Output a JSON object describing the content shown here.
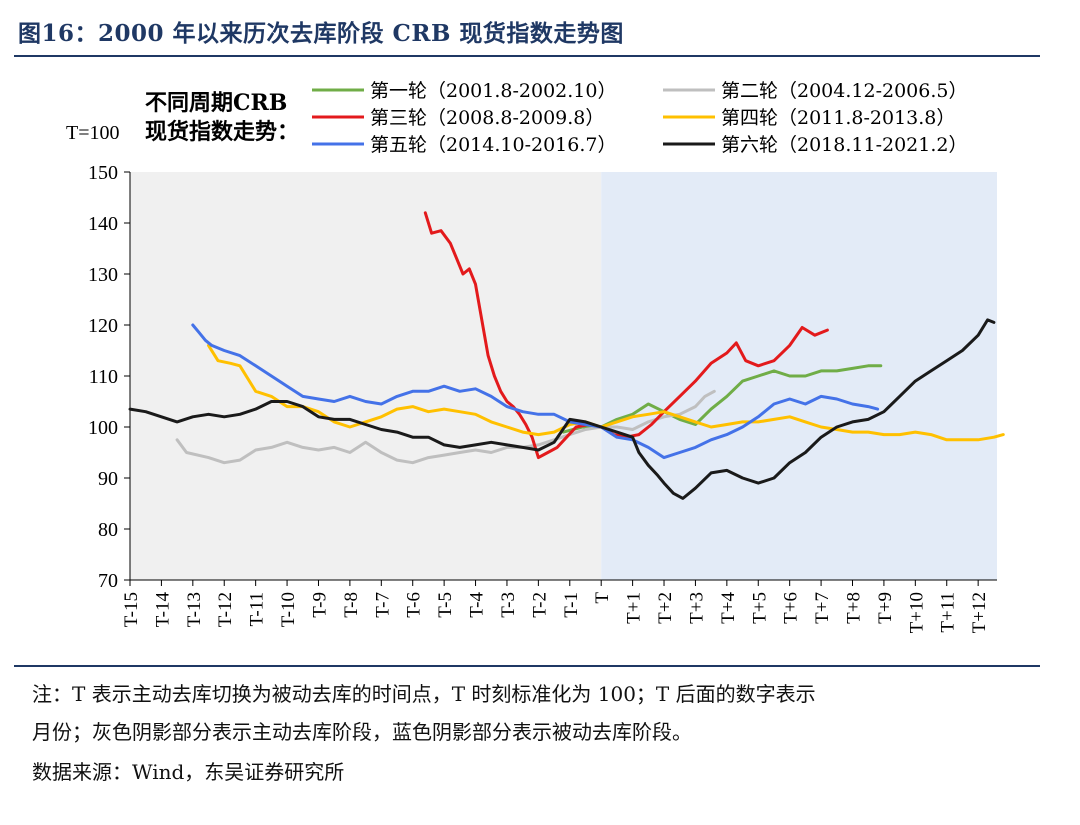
{
  "figure": {
    "title": "图16：2000 年以来历次去库阶段 CRB 现货指数走势图"
  },
  "notes": {
    "line1": "注：T 表示主动去库切换为被动去库的时间点，T 时刻标准化为 100；T 后面的数字表示",
    "line2": "月份；灰色阴影部分表示主动去库阶段，蓝色阴影部分表示被动去库阶段。",
    "source": "数据来源：Wind，东吴证券研究所"
  },
  "colors": {
    "active_shade": "#f0f0f0",
    "passive_shade": "#e3ebf7"
  },
  "chart_data": {
    "type": "line",
    "title": "",
    "ylabel": "T=100",
    "legend_title": [
      "不同周期CRB",
      "现货指数走势："
    ],
    "ylim": [
      70,
      150
    ],
    "yticks": [
      70,
      80,
      90,
      100,
      110,
      120,
      130,
      140,
      150
    ],
    "xlim": [
      -15,
      12.6
    ],
    "xticks": [
      {
        "v": -15,
        "label": "T-15"
      },
      {
        "v": -14,
        "label": "T-14"
      },
      {
        "v": -13,
        "label": "T-13"
      },
      {
        "v": -12,
        "label": "T-12"
      },
      {
        "v": -11,
        "label": "T-11"
      },
      {
        "v": -10,
        "label": "T-10"
      },
      {
        "v": -9,
        "label": "T-9"
      },
      {
        "v": -8,
        "label": "T-8"
      },
      {
        "v": -7,
        "label": "T-7"
      },
      {
        "v": -6,
        "label": "T-6"
      },
      {
        "v": -5,
        "label": "T-5"
      },
      {
        "v": -4,
        "label": "T-4"
      },
      {
        "v": -3,
        "label": "T-3"
      },
      {
        "v": -2,
        "label": "T-2"
      },
      {
        "v": -1,
        "label": "T-1"
      },
      {
        "v": 0,
        "label": "T"
      },
      {
        "v": 1,
        "label": "T+1"
      },
      {
        "v": 2,
        "label": "T+2"
      },
      {
        "v": 3,
        "label": "T+3"
      },
      {
        "v": 4,
        "label": "T+4"
      },
      {
        "v": 5,
        "label": "T+5"
      },
      {
        "v": 6,
        "label": "T+6"
      },
      {
        "v": 7,
        "label": "T+7"
      },
      {
        "v": 8,
        "label": "T+8"
      },
      {
        "v": 9,
        "label": "T+9"
      },
      {
        "v": 10,
        "label": "T+10"
      },
      {
        "v": 11,
        "label": "T+11"
      },
      {
        "v": 12,
        "label": "T+12"
      }
    ],
    "shading": [
      {
        "from": -15,
        "to": 0,
        "name": "主动去库阶段"
      },
      {
        "from": 0,
        "to": 12.6,
        "name": "被动去库阶段"
      }
    ],
    "series": [
      {
        "name": "第一轮（2001.8-2002.10）",
        "color": "#70ad47",
        "points": [
          [
            -1.2,
            99
          ],
          [
            -0.6,
            100
          ],
          [
            0,
            100
          ],
          [
            0.5,
            101.5
          ],
          [
            1,
            102.5
          ],
          [
            1.5,
            104.5
          ],
          [
            2,
            103
          ],
          [
            2.5,
            101.5
          ],
          [
            3,
            100.5
          ],
          [
            3.5,
            103.5
          ],
          [
            4,
            106
          ],
          [
            4.5,
            109
          ],
          [
            5,
            110
          ],
          [
            5.5,
            111
          ],
          [
            6,
            110
          ],
          [
            6.5,
            110
          ],
          [
            7,
            111
          ],
          [
            7.5,
            111
          ],
          [
            8,
            111.5
          ],
          [
            8.5,
            112
          ],
          [
            8.9,
            112
          ]
        ]
      },
      {
        "name": "第二轮（2004.12-2006.5）",
        "color": "#bfbfbf",
        "points": [
          [
            -13.5,
            97.5
          ],
          [
            -13.2,
            95
          ],
          [
            -12.5,
            94
          ],
          [
            -12,
            93
          ],
          [
            -11.5,
            93.5
          ],
          [
            -11,
            95.5
          ],
          [
            -10.5,
            96
          ],
          [
            -10,
            97
          ],
          [
            -9.5,
            96
          ],
          [
            -9,
            95.5
          ],
          [
            -8.5,
            96
          ],
          [
            -8,
            95
          ],
          [
            -7.5,
            97
          ],
          [
            -7,
            95
          ],
          [
            -6.5,
            93.5
          ],
          [
            -6,
            93
          ],
          [
            -5.5,
            94
          ],
          [
            -5,
            94.5
          ],
          [
            -4.5,
            95
          ],
          [
            -4,
            95.5
          ],
          [
            -3.5,
            95
          ],
          [
            -3,
            96
          ],
          [
            -2.5,
            96
          ],
          [
            -2,
            96.5
          ],
          [
            -1.5,
            97.5
          ],
          [
            -1,
            98.5
          ],
          [
            -0.5,
            99.5
          ],
          [
            0,
            100
          ],
          [
            0.5,
            100
          ],
          [
            1,
            99.5
          ],
          [
            1.5,
            101
          ],
          [
            2,
            102
          ],
          [
            2.5,
            102.5
          ],
          [
            3,
            104
          ],
          [
            3.3,
            106
          ],
          [
            3.6,
            107
          ]
        ]
      },
      {
        "name": "第三轮（2008.8-2009.8）",
        "color": "#e31a1c",
        "points": [
          [
            -5.6,
            142
          ],
          [
            -5.4,
            138
          ],
          [
            -5.1,
            138.5
          ],
          [
            -4.8,
            136
          ],
          [
            -4.6,
            133
          ],
          [
            -4.4,
            130
          ],
          [
            -4.2,
            131
          ],
          [
            -4,
            128
          ],
          [
            -3.8,
            121
          ],
          [
            -3.6,
            114
          ],
          [
            -3.4,
            110
          ],
          [
            -3.2,
            107
          ],
          [
            -3,
            105
          ],
          [
            -2.8,
            104
          ],
          [
            -2.6,
            102.5
          ],
          [
            -2.4,
            100.5
          ],
          [
            -2.2,
            98
          ],
          [
            -2,
            94
          ],
          [
            -1.7,
            95
          ],
          [
            -1.4,
            96
          ],
          [
            -1.1,
            98
          ],
          [
            -0.8,
            100
          ],
          [
            -0.4,
            100.5
          ],
          [
            0,
            100
          ],
          [
            0.4,
            98.5
          ],
          [
            0.8,
            98
          ],
          [
            1.2,
            98.5
          ],
          [
            1.6,
            100.5
          ],
          [
            2,
            103
          ],
          [
            2.5,
            106
          ],
          [
            3,
            109
          ],
          [
            3.5,
            112.5
          ],
          [
            4,
            114.5
          ],
          [
            4.3,
            116.5
          ],
          [
            4.6,
            113
          ],
          [
            5,
            112
          ],
          [
            5.5,
            113
          ],
          [
            6,
            116
          ],
          [
            6.4,
            119.5
          ],
          [
            6.8,
            118
          ],
          [
            7.2,
            119
          ]
        ]
      },
      {
        "name": "第四轮（2011.8-2013.8）",
        "color": "#ffc000",
        "points": [
          [
            -12.5,
            116
          ],
          [
            -12.2,
            113
          ],
          [
            -11.8,
            112.5
          ],
          [
            -11.5,
            112
          ],
          [
            -11,
            107
          ],
          [
            -10.5,
            106
          ],
          [
            -10,
            104
          ],
          [
            -9.5,
            104
          ],
          [
            -9,
            103
          ],
          [
            -8.5,
            101
          ],
          [
            -8,
            100
          ],
          [
            -7.5,
            101
          ],
          [
            -7,
            102
          ],
          [
            -6.5,
            103.5
          ],
          [
            -6,
            104
          ],
          [
            -5.5,
            103
          ],
          [
            -5,
            103.5
          ],
          [
            -4.5,
            103
          ],
          [
            -4,
            102.5
          ],
          [
            -3.5,
            101
          ],
          [
            -3,
            100
          ],
          [
            -2.5,
            99
          ],
          [
            -2,
            98.5
          ],
          [
            -1.5,
            99
          ],
          [
            -1,
            100.5
          ],
          [
            -0.5,
            101
          ],
          [
            0,
            100
          ],
          [
            0.5,
            101
          ],
          [
            1,
            102
          ],
          [
            1.5,
            102.5
          ],
          [
            2,
            103
          ],
          [
            2.5,
            102
          ],
          [
            3,
            101
          ],
          [
            3.5,
            100
          ],
          [
            4,
            100.5
          ],
          [
            4.5,
            101
          ],
          [
            5,
            101
          ],
          [
            5.5,
            101.5
          ],
          [
            6,
            102
          ],
          [
            6.5,
            101
          ],
          [
            7,
            100
          ],
          [
            7.5,
            99.5
          ],
          [
            8,
            99
          ],
          [
            8.5,
            99
          ],
          [
            9,
            98.5
          ],
          [
            9.5,
            98.5
          ],
          [
            10,
            99
          ],
          [
            10.5,
            98.5
          ],
          [
            11,
            97.5
          ],
          [
            11.5,
            97.5
          ],
          [
            12,
            97.5
          ],
          [
            12.5,
            98
          ],
          [
            12.8,
            98.5
          ]
        ]
      },
      {
        "name": "第五轮（2014.10-2016.7）",
        "color": "#4472e8",
        "points": [
          [
            -13,
            120
          ],
          [
            -12.8,
            118.5
          ],
          [
            -12.6,
            117
          ],
          [
            -12.4,
            116
          ],
          [
            -12,
            115
          ],
          [
            -11.5,
            114
          ],
          [
            -11,
            112
          ],
          [
            -10.5,
            110
          ],
          [
            -10,
            108
          ],
          [
            -9.5,
            106
          ],
          [
            -9,
            105.5
          ],
          [
            -8.5,
            105
          ],
          [
            -8,
            106
          ],
          [
            -7.5,
            105
          ],
          [
            -7,
            104.5
          ],
          [
            -6.5,
            106
          ],
          [
            -6,
            107
          ],
          [
            -5.5,
            107
          ],
          [
            -5,
            108
          ],
          [
            -4.5,
            107
          ],
          [
            -4,
            107.5
          ],
          [
            -3.5,
            106
          ],
          [
            -3,
            104
          ],
          [
            -2.5,
            103
          ],
          [
            -2,
            102.5
          ],
          [
            -1.5,
            102.5
          ],
          [
            -1,
            101
          ],
          [
            -0.5,
            100.5
          ],
          [
            0,
            100
          ],
          [
            0.5,
            98
          ],
          [
            1,
            97.5
          ],
          [
            1.5,
            96
          ],
          [
            2,
            94
          ],
          [
            2.5,
            95
          ],
          [
            3,
            96
          ],
          [
            3.5,
            97.5
          ],
          [
            4,
            98.5
          ],
          [
            4.5,
            100
          ],
          [
            5,
            102
          ],
          [
            5.5,
            104.5
          ],
          [
            6,
            105.5
          ],
          [
            6.5,
            104.5
          ],
          [
            7,
            106
          ],
          [
            7.5,
            105.5
          ],
          [
            8,
            104.5
          ],
          [
            8.5,
            104
          ],
          [
            8.8,
            103.5
          ]
        ]
      },
      {
        "name": "第六轮（2018.11-2021.2）",
        "color": "#1a1a1a",
        "points": [
          [
            -15,
            103.5
          ],
          [
            -14.5,
            103
          ],
          [
            -14,
            102
          ],
          [
            -13.5,
            101
          ],
          [
            -13,
            102
          ],
          [
            -12.5,
            102.5
          ],
          [
            -12,
            102
          ],
          [
            -11.5,
            102.5
          ],
          [
            -11,
            103.5
          ],
          [
            -10.5,
            105
          ],
          [
            -10,
            105
          ],
          [
            -9.5,
            104
          ],
          [
            -9,
            102
          ],
          [
            -8.5,
            101.5
          ],
          [
            -8,
            101.5
          ],
          [
            -7.5,
            100.5
          ],
          [
            -7,
            99.5
          ],
          [
            -6.5,
            99
          ],
          [
            -6,
            98
          ],
          [
            -5.5,
            98
          ],
          [
            -5,
            96.5
          ],
          [
            -4.5,
            96
          ],
          [
            -4,
            96.5
          ],
          [
            -3.5,
            97
          ],
          [
            -3,
            96.5
          ],
          [
            -2.5,
            96
          ],
          [
            -2,
            95.5
          ],
          [
            -1.5,
            97
          ],
          [
            -1,
            101.5
          ],
          [
            -0.5,
            101
          ],
          [
            0,
            100
          ],
          [
            0.5,
            99
          ],
          [
            1,
            98
          ],
          [
            1.2,
            95
          ],
          [
            1.5,
            92.5
          ],
          [
            1.8,
            90.5
          ],
          [
            2,
            89
          ],
          [
            2.3,
            87
          ],
          [
            2.6,
            86
          ],
          [
            3,
            88
          ],
          [
            3.5,
            91
          ],
          [
            4,
            91.5
          ],
          [
            4.5,
            90
          ],
          [
            5,
            89
          ],
          [
            5.5,
            90
          ],
          [
            6,
            93
          ],
          [
            6.5,
            95
          ],
          [
            7,
            98
          ],
          [
            7.5,
            100
          ],
          [
            8,
            101
          ],
          [
            8.5,
            101.5
          ],
          [
            9,
            103
          ],
          [
            9.5,
            106
          ],
          [
            10,
            109
          ],
          [
            10.5,
            111
          ],
          [
            11,
            113
          ],
          [
            11.5,
            115
          ],
          [
            12,
            118
          ],
          [
            12.3,
            121
          ],
          [
            12.5,
            120.5
          ]
        ]
      }
    ]
  }
}
